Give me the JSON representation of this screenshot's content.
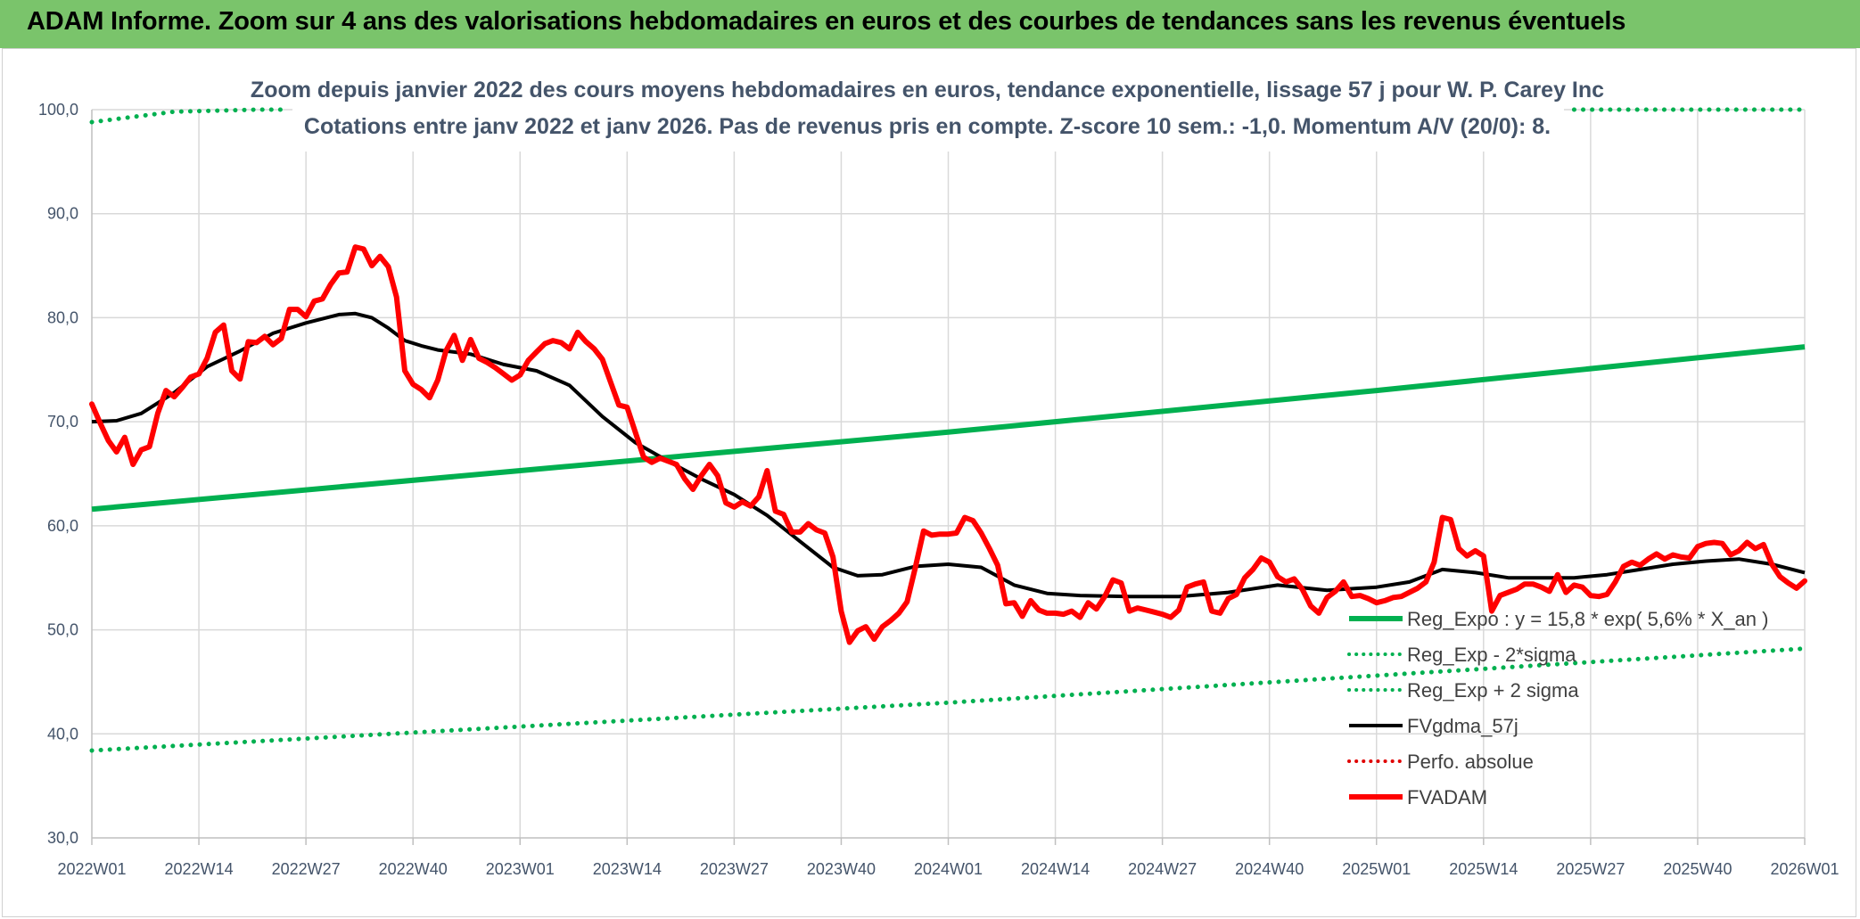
{
  "banner": {
    "title": "ADAM Informe. Zoom sur 4 ans des valorisations hebdomadaires en euros et des courbes de tendances sans les revenus éventuels"
  },
  "colors": {
    "banner": "#7ac46b",
    "reg_expo": "#00b050",
    "fvgdma": "#000000",
    "perfo": "#e00000",
    "fvadam": "#ff0000",
    "grid": "#d9d9d9"
  },
  "chart_data": {
    "type": "line",
    "title": "Zoom depuis janvier 2022 des cours moyens hebdomadaires en euros, tendance exponentielle, lissage 57 j pour W. P. Carey Inc",
    "subtitle": "Cotations entre janv 2022 et janv 2026. Pas de revenus pris en compte. Z-score 10 sem.: -1,0. Momentum A/V (20/0): 8.",
    "ylim": [
      30,
      100
    ],
    "yticks": [
      "30,0",
      "40,0",
      "50,0",
      "60,0",
      "70,0",
      "80,0",
      "90,0",
      "100,0"
    ],
    "xlim": [
      0,
      208
    ],
    "xticks": [
      {
        "label": "2022W01",
        "week": 0
      },
      {
        "label": "2022W14",
        "week": 13
      },
      {
        "label": "2022W27",
        "week": 26
      },
      {
        "label": "2022W40",
        "week": 39
      },
      {
        "label": "2023W01",
        "week": 52
      },
      {
        "label": "2023W14",
        "week": 65
      },
      {
        "label": "2023W27",
        "week": 78
      },
      {
        "label": "2023W40",
        "week": 91
      },
      {
        "label": "2024W01",
        "week": 104
      },
      {
        "label": "2024W14",
        "week": 117
      },
      {
        "label": "2024W27",
        "week": 130
      },
      {
        "label": "2024W40",
        "week": 143
      },
      {
        "label": "2025W01",
        "week": 156
      },
      {
        "label": "2025W14",
        "week": 169
      },
      {
        "label": "2025W27",
        "week": 182
      },
      {
        "label": "2025W40",
        "week": 195
      },
      {
        "label": "2026W01",
        "week": 208
      }
    ],
    "legend": [
      {
        "label": "Reg_Expo : y = 15,8 * exp( 5,6% *  X_an )",
        "style": "solid-thick",
        "color": "#00b050"
      },
      {
        "label": "Reg_Exp - 2*sigma",
        "style": "dotted",
        "color": "#00b050"
      },
      {
        "label": "Reg_Exp + 2 sigma",
        "style": "dotted",
        "color": "#00b050"
      },
      {
        "label": "FVgdma_57j",
        "style": "solid",
        "color": "#000000"
      },
      {
        "label": "Perfo. absolue",
        "style": "dotted",
        "color": "#e00000"
      },
      {
        "label": "FVADAM",
        "style": "solid-thick",
        "color": "#ff0000"
      }
    ],
    "series": [
      {
        "name": "Reg_Expo",
        "x": [
          0,
          52,
          104,
          156,
          208
        ],
        "y": [
          61.6,
          65.3,
          69.0,
          73.0,
          77.2
        ]
      },
      {
        "name": "Reg_Exp - 2*sigma",
        "x": [
          0,
          52,
          104,
          156,
          208
        ],
        "y": [
          38.4,
          40.7,
          43.0,
          45.6,
          48.2
        ]
      },
      {
        "name": "Reg_Exp + 2 sigma",
        "x": [
          0,
          10,
          20,
          23,
          180,
          208
        ],
        "y": [
          98.8,
          99.8,
          100.0,
          100.0,
          100.0,
          100.0
        ]
      },
      {
        "name": "FVgdma_57j",
        "x": [
          0,
          3,
          6,
          10,
          14,
          18,
          22,
          26,
          30,
          32,
          34,
          36,
          38,
          40,
          42,
          46,
          50,
          54,
          58,
          62,
          66,
          70,
          74,
          78,
          82,
          86,
          90,
          93,
          96,
          100,
          104,
          108,
          112,
          116,
          120,
          126,
          132,
          138,
          144,
          150,
          156,
          160,
          164,
          168,
          172,
          176,
          180,
          184,
          188,
          192,
          196,
          200,
          204,
          208
        ],
        "y": [
          70.0,
          70.1,
          70.8,
          72.8,
          75.3,
          76.8,
          78.5,
          79.5,
          80.3,
          80.4,
          80.0,
          79.0,
          77.8,
          77.3,
          76.9,
          76.5,
          75.5,
          74.9,
          73.5,
          70.5,
          68.0,
          66.2,
          64.5,
          63.0,
          61.0,
          58.5,
          56.0,
          55.2,
          55.3,
          56.1,
          56.3,
          56.0,
          54.3,
          53.5,
          53.3,
          53.2,
          53.2,
          53.6,
          54.3,
          53.8,
          54.1,
          54.6,
          55.8,
          55.5,
          55.0,
          55.0,
          55.0,
          55.3,
          55.8,
          56.3,
          56.6,
          56.8,
          56.3,
          55.5
        ]
      },
      {
        "name": "FVADAM",
        "x": [
          0,
          1,
          2,
          3,
          4,
          5,
          6,
          7,
          8,
          9,
          10,
          11,
          12,
          13,
          14,
          15,
          16,
          17,
          18,
          19,
          20,
          21,
          22,
          23,
          24,
          25,
          26,
          27,
          28,
          29,
          30,
          31,
          32,
          33,
          34,
          35,
          36,
          37,
          38,
          39,
          40,
          41,
          42,
          43,
          44,
          45,
          46,
          47,
          48,
          49,
          50,
          51,
          52,
          53,
          54,
          55,
          56,
          57,
          58,
          59,
          60,
          61,
          62,
          63,
          64,
          65,
          66,
          67,
          68,
          69,
          70,
          71,
          72,
          73,
          74,
          75,
          76,
          77,
          78,
          79,
          80,
          81,
          82,
          83,
          84,
          85,
          86,
          87,
          88,
          89,
          90,
          91,
          92,
          93,
          94,
          95,
          96,
          97,
          98,
          99,
          100,
          101,
          102,
          103,
          104,
          105,
          106,
          107,
          108,
          109,
          110,
          111,
          112,
          113,
          114,
          115,
          116,
          117,
          118,
          119,
          120,
          121,
          122,
          123,
          124,
          125,
          126,
          127,
          128,
          129,
          130,
          131,
          132,
          133,
          134,
          135,
          136,
          137,
          138,
          139,
          140,
          141,
          142,
          143,
          144,
          145,
          146,
          147,
          148,
          149,
          150,
          151,
          152,
          153,
          154,
          155,
          156,
          157,
          158,
          159,
          160,
          161,
          162,
          163,
          164,
          165,
          166,
          167,
          168,
          169,
          170,
          171,
          172,
          173,
          174,
          175,
          176,
          177,
          178,
          179,
          180,
          181,
          182,
          183,
          184,
          185,
          186,
          187,
          188,
          189,
          190,
          191,
          192,
          193,
          194,
          195,
          196,
          197,
          198,
          199,
          200,
          201,
          202,
          203,
          204,
          205,
          206,
          207,
          208
        ],
        "y": [
          71.7,
          69.9,
          68.2,
          67.1,
          68.5,
          65.9,
          67.3,
          67.6,
          70.8,
          73.0,
          72.4,
          73.3,
          74.3,
          74.6,
          76.1,
          78.6,
          79.3,
          74.9,
          74.1,
          77.7,
          77.6,
          78.2,
          77.4,
          78.0,
          80.8,
          80.8,
          80.1,
          81.6,
          81.8,
          83.2,
          84.3,
          84.4,
          86.8,
          86.6,
          85.0,
          85.9,
          84.9,
          82.0,
          74.9,
          73.6,
          73.1,
          72.3,
          74.0,
          76.8,
          78.3,
          75.9,
          77.9,
          76.1,
          75.7,
          75.2,
          74.6,
          74.0,
          74.5,
          75.9,
          76.7,
          77.5,
          77.8,
          77.6,
          77.0,
          78.6,
          77.7,
          77.0,
          76.0,
          73.8,
          71.6,
          71.4,
          69.0,
          66.6,
          66.1,
          66.5,
          66.2,
          65.9,
          64.5,
          63.5,
          64.8,
          65.9,
          64.8,
          62.2,
          61.8,
          62.3,
          61.9,
          62.8,
          65.3,
          61.4,
          61.1,
          59.4,
          59.4,
          60.2,
          59.6,
          59.3,
          57.0,
          51.8,
          48.8,
          49.9,
          50.3,
          49.1,
          50.3,
          50.9,
          51.6,
          52.7,
          56.0,
          59.5,
          59.1,
          59.2,
          59.2,
          59.3,
          60.8,
          60.5,
          59.3,
          57.8,
          56.2,
          52.5,
          52.6,
          51.3,
          52.8,
          51.9,
          51.6,
          51.6,
          51.5,
          51.8,
          51.2,
          52.6,
          52.0,
          53.2,
          54.8,
          54.5,
          51.8,
          52.1,
          51.9,
          51.7,
          51.5,
          51.2,
          51.9,
          54.1,
          54.4,
          54.6,
          51.8,
          51.6,
          53.0,
          53.4,
          55.0,
          55.8,
          56.9,
          56.5,
          55.1,
          54.6,
          54.9,
          53.9,
          52.3,
          51.6,
          53.1,
          53.7,
          54.6,
          53.2,
          53.3,
          53.0,
          52.6,
          52.8,
          53.1,
          53.2,
          53.6,
          54.0,
          54.6,
          56.5,
          60.8,
          60.6,
          57.8,
          57.1,
          57.6,
          57.1,
          51.8,
          53.3,
          53.6,
          53.9,
          54.4,
          54.4,
          54.1,
          53.7,
          55.3,
          53.6,
          54.3,
          54.1,
          53.3,
          53.2,
          53.4,
          54.6,
          56.1,
          56.5,
          56.2,
          56.8,
          57.3,
          56.8,
          57.2,
          57.0,
          56.9,
          58.0,
          58.3,
          58.4,
          58.3,
          57.2,
          57.6,
          58.4,
          57.8,
          58.2,
          56.3,
          55.1,
          54.5,
          54.0,
          54.7
        ]
      }
    ]
  }
}
